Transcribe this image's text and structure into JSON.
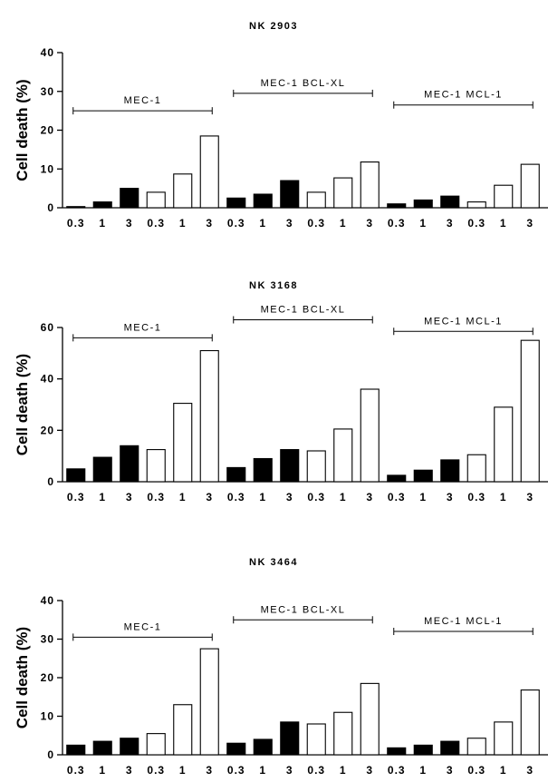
{
  "chart_data": [
    {
      "type": "bar",
      "title": "NK 2903",
      "ylabel": "Cell death (%)",
      "xlabel": "",
      "ylim": [
        0,
        40
      ],
      "yticks": [
        "0",
        "10",
        "20",
        "30",
        "40"
      ],
      "categories": [
        "0.3",
        "1",
        "3",
        "0.3",
        "1",
        "3",
        "0.3",
        "1",
        "3",
        "0.3",
        "1",
        "3",
        "0.3",
        "1",
        "3",
        "0.3",
        "1",
        "3"
      ],
      "values": [
        0.3,
        1.5,
        5,
        4,
        8.7,
        18.5,
        2.5,
        3.5,
        7,
        4,
        7.7,
        11.8,
        1,
        2,
        3,
        1.5,
        5.8,
        11.2
      ],
      "fill": [
        "black",
        "black",
        "black",
        "white",
        "white",
        "white",
        "black",
        "black",
        "black",
        "white",
        "white",
        "white",
        "black",
        "black",
        "black",
        "white",
        "white",
        "white"
      ],
      "groups": [
        {
          "label": "MEC-1",
          "bracket_level": 25
        },
        {
          "label": "MEC-1 BCL-XL",
          "bracket_level": 29.5
        },
        {
          "label": "MEC-1 MCL-1",
          "bracket_level": 26.5
        }
      ]
    },
    {
      "type": "bar",
      "title": "NK 3168",
      "ylabel": "Cell death (%)",
      "xlabel": "",
      "ylim": [
        0,
        60
      ],
      "yticks": [
        "0",
        "20",
        "40",
        "60"
      ],
      "categories": [
        "0.3",
        "1",
        "3",
        "0.3",
        "1",
        "3",
        "0.3",
        "1",
        "3",
        "0.3",
        "1",
        "3",
        "0.3",
        "1",
        "3",
        "0.3",
        "1",
        "3"
      ],
      "values": [
        5,
        9.5,
        14,
        12.5,
        30.5,
        51,
        5.5,
        9,
        12.5,
        12,
        20.5,
        36,
        2.5,
        4.5,
        8.5,
        10.5,
        29,
        55
      ],
      "fill": [
        "black",
        "black",
        "black",
        "white",
        "white",
        "white",
        "black",
        "black",
        "black",
        "white",
        "white",
        "white",
        "black",
        "black",
        "black",
        "white",
        "white",
        "white"
      ],
      "groups": [
        {
          "label": "MEC-1",
          "bracket_level": 56
        },
        {
          "label": "MEC-1 BCL-XL",
          "bracket_level": 63
        },
        {
          "label": "MEC-1 MCL-1",
          "bracket_level": 58.5
        }
      ]
    },
    {
      "type": "bar",
      "title": "NK 3464",
      "ylabel": "Cell death (%)",
      "xlabel": "",
      "ylim": [
        0,
        40
      ],
      "yticks": [
        "0",
        "10",
        "20",
        "30",
        "40"
      ],
      "categories": [
        "0.3",
        "1",
        "3",
        "0.3",
        "1",
        "3",
        "0.3",
        "1",
        "3",
        "0.3",
        "1",
        "3",
        "0.3",
        "1",
        "3",
        "0.3",
        "1",
        "3"
      ],
      "values": [
        2.5,
        3.5,
        4.3,
        5.5,
        13,
        27.5,
        3,
        4,
        8.5,
        8,
        11,
        18.5,
        1.8,
        2.5,
        3.5,
        4.3,
        8.5,
        16.8
      ],
      "fill": [
        "black",
        "black",
        "black",
        "white",
        "white",
        "white",
        "black",
        "black",
        "black",
        "white",
        "white",
        "white",
        "black",
        "black",
        "black",
        "white",
        "white",
        "white"
      ],
      "groups": [
        {
          "label": "MEC-1",
          "bracket_level": 30.5
        },
        {
          "label": "MEC-1 BCL-XL",
          "bracket_level": 35
        },
        {
          "label": "MEC-1 MCL-1",
          "bracket_level": 32
        }
      ]
    }
  ]
}
